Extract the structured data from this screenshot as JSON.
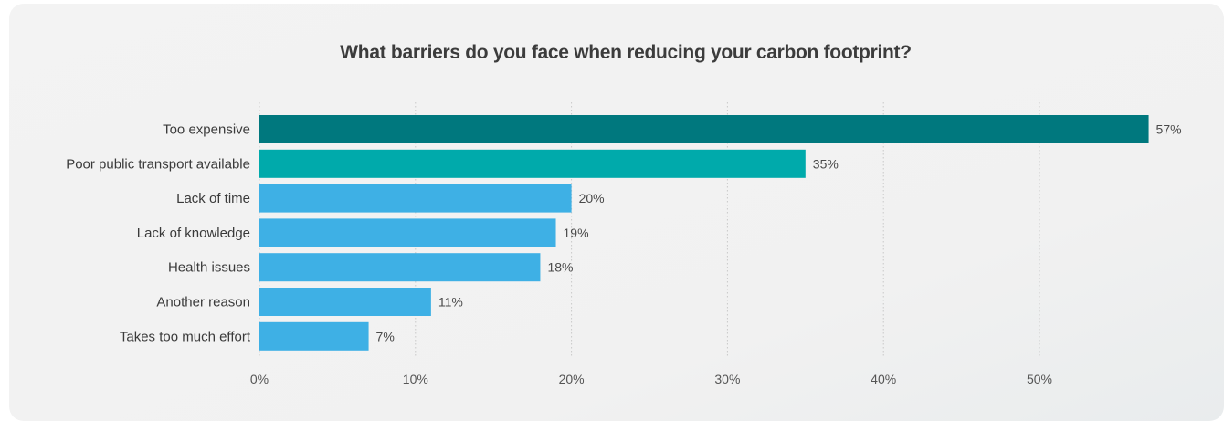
{
  "chart_data": {
    "type": "bar",
    "orientation": "horizontal",
    "title": "What barriers do you face when reducing your carbon footprint?",
    "categories": [
      "Too expensive",
      "Poor public transport available",
      "Lack of time",
      "Lack of knowledge",
      "Health issues",
      "Another reason",
      "Takes too much effort"
    ],
    "values": [
      57,
      35,
      20,
      19,
      18,
      11,
      7
    ],
    "value_labels": [
      "57%",
      "35%",
      "20%",
      "19%",
      "18%",
      "11%",
      "7%"
    ],
    "bar_colors": [
      "#00787e",
      "#00aaab",
      "#3eb0e5",
      "#3eb0e5",
      "#3eb0e5",
      "#3eb0e5",
      "#3eb0e5"
    ],
    "xlim": [
      0,
      60
    ],
    "xticks": [
      0,
      10,
      20,
      30,
      40,
      50
    ],
    "xtick_labels": [
      "0%",
      "10%",
      "20%",
      "30%",
      "40%",
      "50%"
    ],
    "grid": "vertical dotted",
    "xlabel": "",
    "ylabel": ""
  }
}
